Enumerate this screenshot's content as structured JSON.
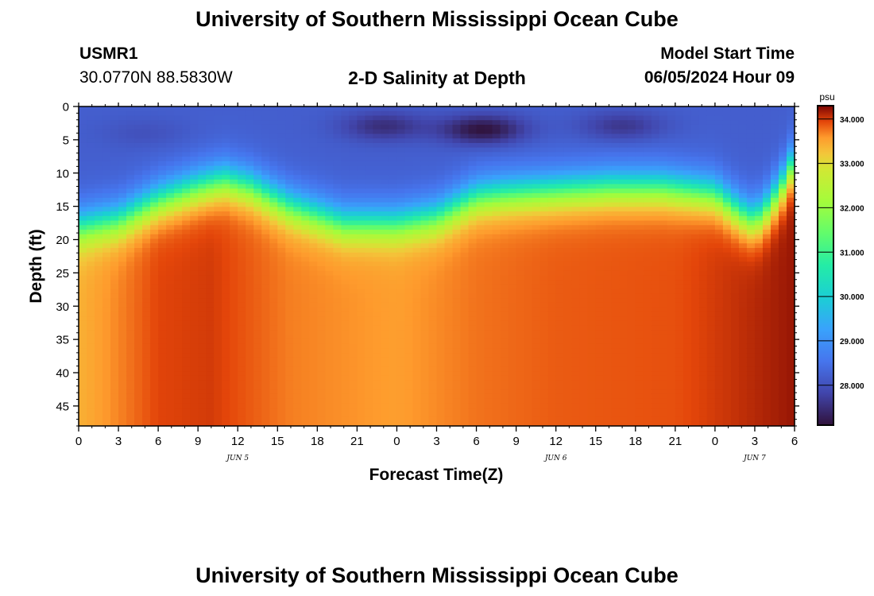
{
  "header": {
    "title": "University of Southern Mississippi Ocean Cube",
    "station_id": "USMR1",
    "coordinates": "30.0770N  88.5830W",
    "plot_title": "2-D Salinity at Depth",
    "model_start_label": "Model Start Time",
    "model_start_value": "06/05/2024 Hour 09"
  },
  "footer": {
    "title": "University of Southern Mississippi Ocean Cube"
  },
  "chart_data": {
    "type": "heatmap",
    "title": "2-D Salinity at Depth",
    "xlabel": "Forecast Time(Z)",
    "ylabel": "Depth (ft)",
    "x_range_hours": [
      0,
      54
    ],
    "x_ticks": [
      "0",
      "3",
      "6",
      "9",
      "12",
      "15",
      "18",
      "21",
      "0",
      "3",
      "6",
      "9",
      "12",
      "15",
      "18",
      "21",
      "0",
      "3",
      "6"
    ],
    "date_labels": [
      {
        "text": "JUN 5",
        "hour": 12
      },
      {
        "text": "JUN 6",
        "hour": 36
      },
      {
        "text": "JUN 7",
        "hour": 51
      }
    ],
    "y_range": [
      0,
      48
    ],
    "y_ticks": [
      "0",
      "5",
      "10",
      "15",
      "20",
      "25",
      "30",
      "35",
      "40",
      "45"
    ],
    "y_tick_values": [
      0,
      5,
      10,
      15,
      20,
      25,
      30,
      35,
      40,
      45
    ],
    "colorbar": {
      "unit": "psu",
      "min": 27.1,
      "max": 34.3,
      "ticks": [
        "34.000",
        "33.000",
        "32.000",
        "31.000",
        "30.000",
        "29.000",
        "28.000"
      ],
      "tick_values": [
        34,
        33,
        32,
        31,
        30,
        29,
        28
      ]
    },
    "halocline": {
      "hours": [
        0,
        3,
        6,
        9,
        11,
        13,
        16,
        20,
        24,
        27,
        30,
        32,
        36,
        40,
        44,
        48,
        50,
        51,
        52,
        53,
        54
      ],
      "depth_ft": [
        18,
        17,
        14,
        12,
        11,
        12,
        15,
        17.5,
        17.5,
        16.5,
        13.5,
        13,
        12.5,
        12,
        12,
        13,
        16,
        17,
        15,
        12,
        8
      ]
    },
    "deep_salinity": {
      "hours": [
        0,
        6,
        10,
        16,
        24,
        30,
        36,
        45,
        54
      ],
      "psu": [
        33.4,
        33.95,
        34.0,
        33.7,
        33.55,
        33.75,
        33.85,
        33.9,
        34.2
      ]
    },
    "surface_minima": [
      {
        "hour": 30.5,
        "depth_ft": 3.5,
        "psu": 27.1
      },
      {
        "hour": 23,
        "depth_ft": 3,
        "psu": 27.5
      },
      {
        "hour": 41,
        "depth_ft": 3,
        "psu": 27.6
      },
      {
        "hour": 5,
        "depth_ft": 4,
        "psu": 28.0
      }
    ],
    "surface_base_psu": 28.2
  }
}
